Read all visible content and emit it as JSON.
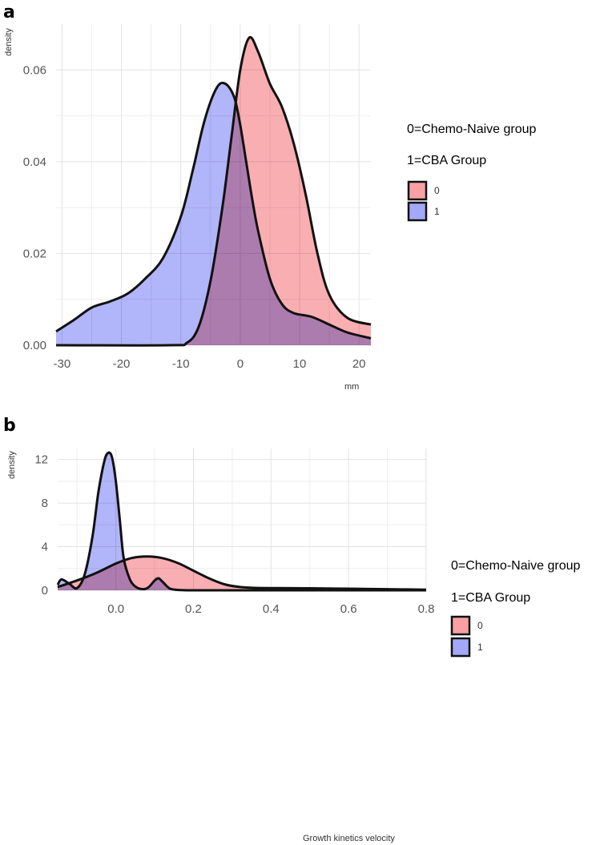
{
  "chart_data": [
    {
      "panel": "a",
      "type": "area",
      "title": "",
      "xlabel": "mm",
      "ylabel": "density",
      "xlim": [
        -31,
        22
      ],
      "ylim": [
        0,
        0.07
      ],
      "xticks": [
        -30,
        -20,
        -10,
        0,
        10,
        20
      ],
      "xtick_labels": [
        "-30",
        "-20",
        "-10",
        "0",
        "10",
        "20"
      ],
      "yticks": [
        0,
        0.02,
        0.04,
        0.06
      ],
      "ytick_labels": [
        "0.00",
        "0.02",
        "0.04",
        "0.06"
      ],
      "legend_notes": [
        "0=Chemo-Naive group",
        "1=CBA Group"
      ],
      "series": [
        {
          "name": "0",
          "color": "#f8a0a4",
          "x": [
            -31,
            -12,
            -9,
            -7,
            -5,
            -3,
            -1.5,
            0,
            1.5,
            3,
            5,
            7,
            9,
            11,
            13,
            15,
            18,
            22
          ],
          "y": [
            0,
            0,
            0.0005,
            0.004,
            0.014,
            0.03,
            0.045,
            0.06,
            0.067,
            0.064,
            0.057,
            0.052,
            0.044,
            0.033,
            0.02,
            0.011,
            0.006,
            0.0045
          ]
        },
        {
          "name": "1",
          "color": "#a3a8f8",
          "x": [
            -31,
            -28,
            -25,
            -22,
            -19,
            -16,
            -13,
            -10,
            -8,
            -6,
            -4,
            -2.5,
            -1,
            0,
            1,
            2,
            3,
            5,
            7,
            9,
            12,
            15,
            18,
            22
          ],
          "y": [
            0.003,
            0.0055,
            0.0082,
            0.0095,
            0.0112,
            0.0145,
            0.019,
            0.028,
            0.038,
            0.049,
            0.056,
            0.057,
            0.054,
            0.048,
            0.04,
            0.032,
            0.025,
            0.0145,
            0.009,
            0.007,
            0.0062,
            0.0045,
            0.0028,
            0.0015
          ]
        }
      ]
    },
    {
      "panel": "b",
      "type": "area",
      "title": "",
      "xlabel": "Growth kinetics velocity",
      "ylabel": "density",
      "xlim": [
        -0.15,
        0.8
      ],
      "ylim": [
        0,
        13
      ],
      "xticks": [
        0.0,
        0.2,
        0.4,
        0.6,
        0.8
      ],
      "xtick_labels": [
        "0.0",
        "0.2",
        "0.4",
        "0.6",
        "0.8"
      ],
      "yticks": [
        0,
        4,
        8,
        12
      ],
      "ytick_labels": [
        "0",
        "4",
        "8",
        "12"
      ],
      "legend_notes": [
        "0=Chemo-Naive group",
        "1=CBA Group"
      ],
      "series": [
        {
          "name": "0",
          "color": "#f8a0a4",
          "x": [
            -0.15,
            -0.1,
            -0.05,
            0.0,
            0.04,
            0.08,
            0.12,
            0.16,
            0.2,
            0.24,
            0.28,
            0.32,
            0.36,
            0.42,
            0.5,
            0.6,
            0.7,
            0.8
          ],
          "y": [
            0.3,
            0.9,
            1.6,
            2.45,
            2.95,
            3.1,
            2.95,
            2.5,
            1.8,
            1.1,
            0.55,
            0.3,
            0.22,
            0.2,
            0.18,
            0.15,
            0.1,
            0.06
          ]
        },
        {
          "name": "1",
          "color": "#a3a8f8",
          "x": [
            -0.15,
            -0.14,
            -0.12,
            -0.1,
            -0.08,
            -0.06,
            -0.045,
            -0.03,
            -0.02,
            -0.01,
            0.0,
            0.01,
            0.02,
            0.035,
            0.05,
            0.07,
            0.085,
            0.1,
            0.11,
            0.12,
            0.14,
            0.17,
            0.22,
            0.3,
            0.5,
            0.8
          ],
          "y": [
            0.5,
            1.0,
            0.6,
            0.2,
            1.5,
            5.0,
            9.0,
            11.8,
            12.6,
            12.2,
            10.0,
            6.5,
            3.0,
            1.1,
            0.35,
            0.1,
            0.3,
            0.9,
            1.1,
            0.8,
            0.15,
            0.02,
            0,
            0,
            0,
            0
          ]
        }
      ]
    }
  ],
  "panels": {
    "a": {
      "label": "a",
      "legend_keys": [
        "0",
        "1"
      ]
    },
    "b": {
      "label": "b",
      "legend_keys": [
        "0",
        "1"
      ]
    }
  }
}
